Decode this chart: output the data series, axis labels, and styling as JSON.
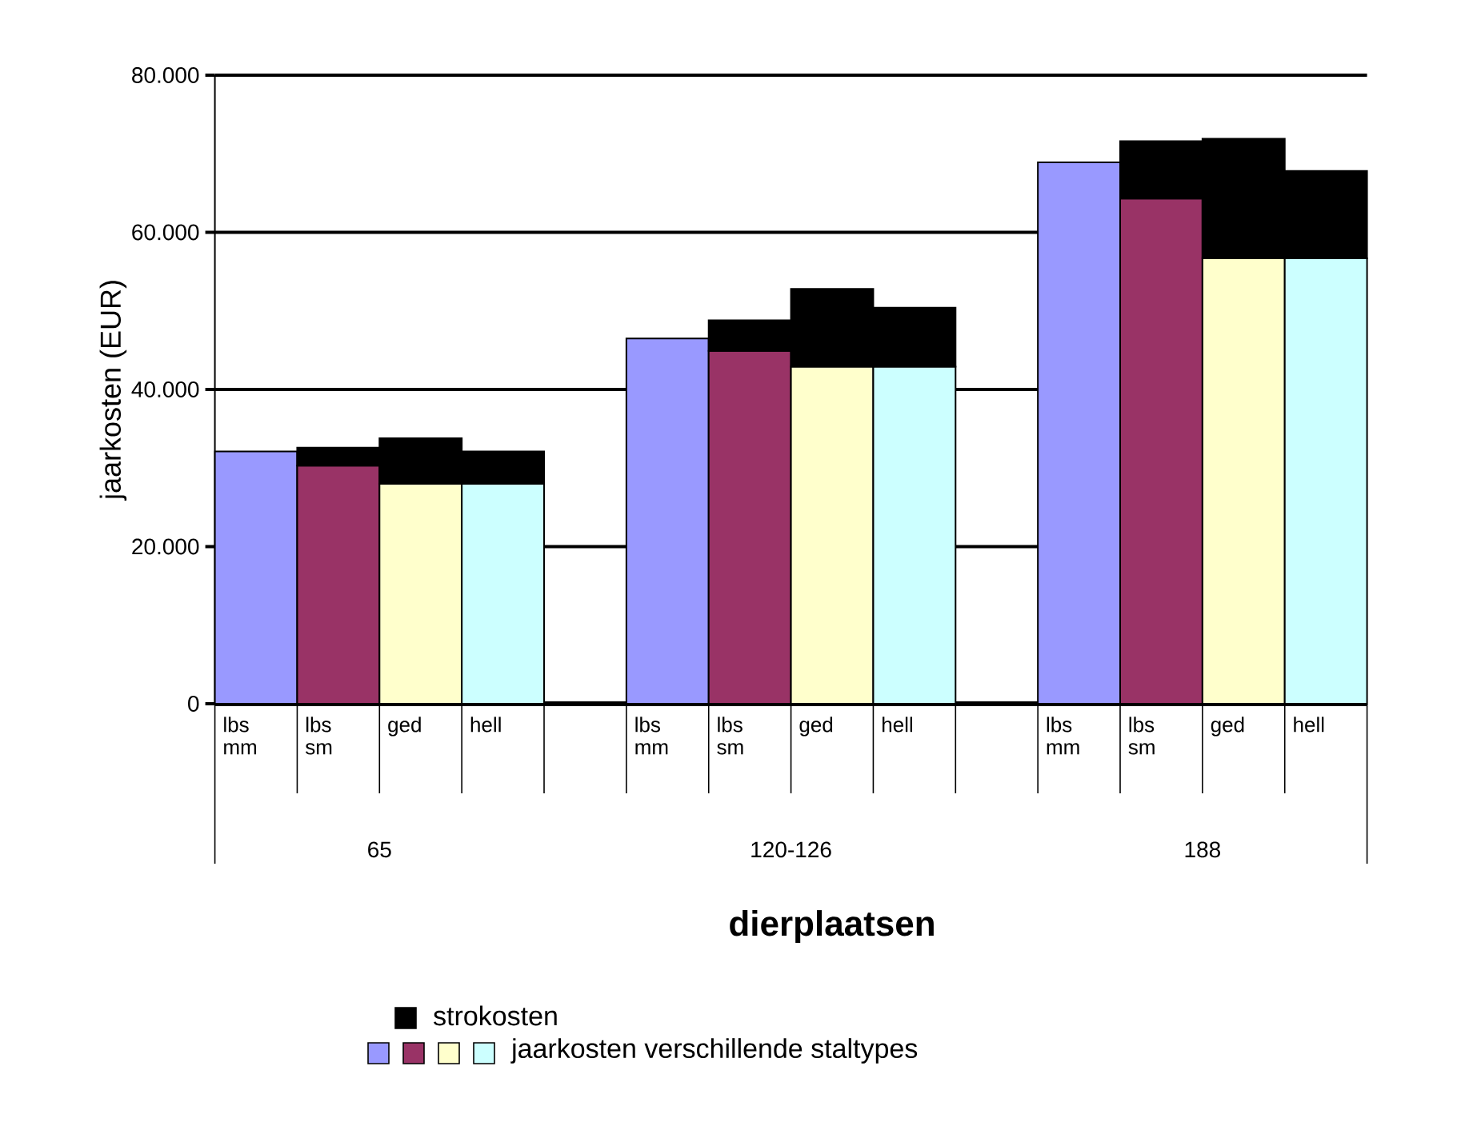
{
  "chart_data": {
    "type": "bar",
    "stacked": true,
    "xlabel": "dierplaatsen",
    "ylabel": "jaarkosten (EUR)",
    "categories": [
      "lbs mm",
      "lbs sm",
      "ged",
      "hell",
      null,
      "lbs mm",
      "lbs sm",
      "ged",
      "hell",
      null,
      "lbs mm",
      "lbs sm",
      "ged",
      "hell"
    ],
    "series": [
      {
        "name": "jaarkosten verschillende staltypes",
        "colors": [
          "#9999ff",
          "#993366",
          "#ffffcc",
          "#ccffff",
          null,
          "#9999ff",
          "#993366",
          "#ffffcc",
          "#ccffff",
          null,
          "#9999ff",
          "#993366",
          "#ffffcc",
          "#ccffff"
        ],
        "values": [
          32100,
          30300,
          28000,
          28000,
          null,
          46500,
          44900,
          42900,
          42900,
          null,
          68900,
          64300,
          56700,
          56700
        ]
      },
      {
        "name": "strokosten",
        "color": "#000000",
        "values": [
          null,
          2300,
          5800,
          4100,
          null,
          null,
          3900,
          9900,
          7500,
          null,
          null,
          7300,
          15200,
          11100
        ]
      }
    ],
    "ylim": [
      0,
      80000
    ],
    "yticks": [
      {
        "value": 0,
        "label": "0"
      },
      {
        "value": 20000,
        "label": "20.000"
      },
      {
        "value": 40000,
        "label": "40.000"
      },
      {
        "value": 60000,
        "label": "60.000"
      },
      {
        "value": 80000,
        "label": "80.000"
      }
    ],
    "grid": "y",
    "legend": "bottom left",
    "annotations": [
      "65",
      "120-126",
      "188"
    ]
  }
}
